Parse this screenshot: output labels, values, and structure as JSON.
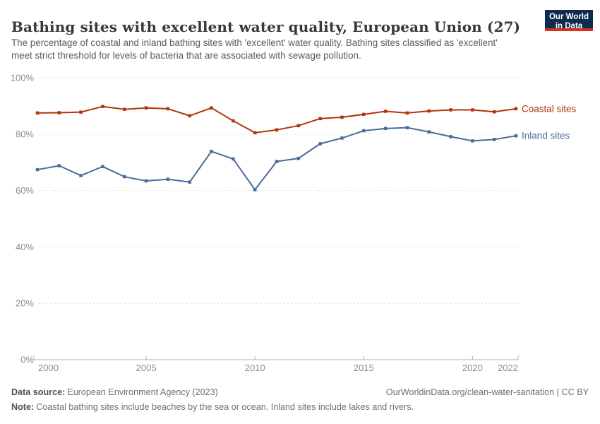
{
  "header": {
    "title": "Bathing sites with excellent water quality, European Union (27)",
    "subtitle": "The percentage of coastal and inland bathing sites with 'excellent' water quality. Bathing sites classified as 'excellent' meet strict threshold for levels of bacteria that are associated with sewage pollution.",
    "logo": {
      "line1": "Our World",
      "line2": "in Data",
      "bg_color": "#0d2d4e",
      "accent_color": "#d2331f"
    }
  },
  "chart_data": {
    "type": "line",
    "title": "Bathing sites with excellent water quality, European Union (27)",
    "x": [
      2000,
      2001,
      2002,
      2003,
      2004,
      2005,
      2006,
      2007,
      2008,
      2009,
      2010,
      2011,
      2012,
      2013,
      2014,
      2015,
      2016,
      2017,
      2018,
      2019,
      2020,
      2021,
      2022
    ],
    "series": [
      {
        "name": "Coastal sites",
        "color": "#b13507",
        "values": [
          87.5,
          87.6,
          87.8,
          89.8,
          88.8,
          89.3,
          89.0,
          86.5,
          89.3,
          84.7,
          80.5,
          81.5,
          83.0,
          85.5,
          86.0,
          87.0,
          88.1,
          87.5,
          88.2,
          88.6,
          88.6,
          87.9,
          89.0
        ]
      },
      {
        "name": "Inland sites",
        "color": "#4c6a9c",
        "values": [
          67.4,
          68.8,
          65.3,
          68.5,
          64.9,
          63.4,
          64.0,
          63.0,
          73.9,
          71.2,
          60.3,
          70.3,
          71.4,
          76.6,
          78.6,
          81.2,
          82.0,
          82.3,
          80.8,
          79.1,
          77.6,
          78.1,
          79.4
        ]
      }
    ],
    "ylim": [
      0,
      100
    ],
    "yticks": [
      0,
      20,
      40,
      60,
      80,
      100
    ],
    "ytick_suffix": "%",
    "xticks": [
      2000,
      2005,
      2010,
      2015,
      2020,
      2022
    ],
    "grid": "dashed-horizontal",
    "legend_position": "right-of-line-end",
    "colors": {
      "gridline": "#dcdcdc",
      "axis": "#b0b0b0",
      "tick_label": "#8d8d8d"
    }
  },
  "footer": {
    "data_source_label": "Data source:",
    "data_source": "European Environment Agency (2023)",
    "link": "OurWorldinData.org/clean-water-sanitation | CC BY",
    "note_label": "Note:",
    "note": "Coastal bathing sites include beaches by the sea or ocean. Inland sites include lakes and rivers."
  }
}
